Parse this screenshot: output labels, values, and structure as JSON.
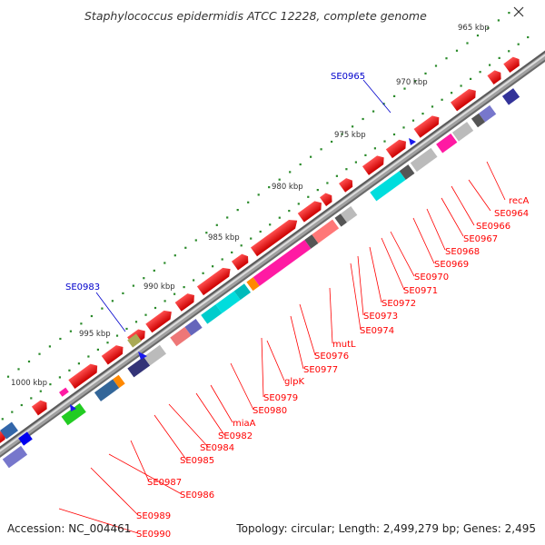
{
  "title": "Staphylococcus epidermidis ATCC 12228, complete genome",
  "footer": {
    "accession": "Accession: NC_004461",
    "summary": "Topology: circular; Length: 2,499,279 bp; Genes: 2,495"
  },
  "scale_labels": [
    "965 kbp",
    "970 kbp",
    "975 kbp",
    "980 kbp",
    "985 kbp",
    "990 kbp",
    "995 kbp",
    "1000 kbp"
  ],
  "gene_labels": [
    {
      "text": "recA",
      "color": "#ff0000"
    },
    {
      "text": "SE0964",
      "color": "#ff0000"
    },
    {
      "text": "SE0966",
      "color": "#ff0000"
    },
    {
      "text": "SE0967",
      "color": "#ff0000"
    },
    {
      "text": "SE0968",
      "color": "#ff0000"
    },
    {
      "text": "SE0969",
      "color": "#ff0000"
    },
    {
      "text": "SE0970",
      "color": "#ff0000"
    },
    {
      "text": "SE0971",
      "color": "#ff0000"
    },
    {
      "text": "SE0972",
      "color": "#ff0000"
    },
    {
      "text": "SE0973",
      "color": "#ff0000"
    },
    {
      "text": "SE0974",
      "color": "#ff0000"
    },
    {
      "text": "mutL",
      "color": "#ff0000"
    },
    {
      "text": "SE0976",
      "color": "#ff0000"
    },
    {
      "text": "SE0977",
      "color": "#ff0000"
    },
    {
      "text": "glpK",
      "color": "#ff0000"
    },
    {
      "text": "SE0979",
      "color": "#ff0000"
    },
    {
      "text": "SE0980",
      "color": "#ff0000"
    },
    {
      "text": "miaA",
      "color": "#ff0000"
    },
    {
      "text": "SE0982",
      "color": "#ff0000"
    },
    {
      "text": "SE0984",
      "color": "#ff0000"
    },
    {
      "text": "SE0985",
      "color": "#ff0000"
    },
    {
      "text": "SE0987",
      "color": "#ff0000"
    },
    {
      "text": "SE0986",
      "color": "#ff0000"
    },
    {
      "text": "SE0989",
      "color": "#ff0000"
    },
    {
      "text": "SE0990",
      "color": "#ff0000"
    },
    {
      "text": "SE0965",
      "color": "#0000cc"
    },
    {
      "text": "SE0983",
      "color": "#0000cc"
    }
  ],
  "colors": {
    "backbone": "#9a9a9a",
    "forward_gene": "#ff0000",
    "label_line": "#ff0000",
    "rna_label": "#0000cc",
    "tick": "#2a8a2a"
  }
}
